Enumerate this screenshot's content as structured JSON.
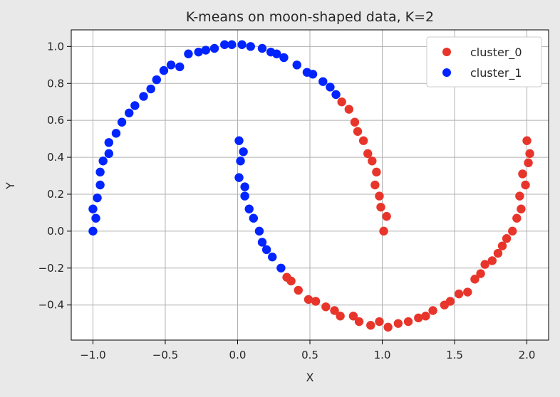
{
  "chart_data": {
    "type": "scatter",
    "title": "K-means on moon-shaped data, K=2",
    "xlabel": "X",
    "ylabel": "Y",
    "xlim": [
      -1.15,
      2.15
    ],
    "ylim": [
      -0.59,
      1.09
    ],
    "xticks": [
      -1.0,
      -0.5,
      0.0,
      0.5,
      1.0,
      1.5,
      2.0
    ],
    "xtick_labels": [
      "−1.0",
      "−0.5",
      "0.0",
      "0.5",
      "1.0",
      "1.5",
      "2.0"
    ],
    "yticks": [
      -0.4,
      -0.2,
      0.0,
      0.2,
      0.4,
      0.6,
      0.8,
      1.0
    ],
    "ytick_labels": [
      "−0.4",
      "−0.2",
      "0.0",
      "0.2",
      "0.4",
      "0.6",
      "0.8",
      "1.0"
    ],
    "grid": true,
    "legend_position": "top-right",
    "series": [
      {
        "name": "cluster_0",
        "color": "#e8352b",
        "points": [
          [
            0.72,
            0.7
          ],
          [
            0.77,
            0.66
          ],
          [
            0.81,
            0.59
          ],
          [
            0.83,
            0.54
          ],
          [
            0.87,
            0.49
          ],
          [
            0.9,
            0.42
          ],
          [
            0.93,
            0.38
          ],
          [
            0.96,
            0.32
          ],
          [
            0.95,
            0.25
          ],
          [
            0.98,
            0.19
          ],
          [
            0.99,
            0.13
          ],
          [
            1.03,
            0.08
          ],
          [
            1.01,
            0.0
          ],
          [
            0.34,
            -0.25
          ],
          [
            0.37,
            -0.27
          ],
          [
            0.42,
            -0.32
          ],
          [
            0.49,
            -0.37
          ],
          [
            0.54,
            -0.38
          ],
          [
            0.61,
            -0.41
          ],
          [
            0.67,
            -0.43
          ],
          [
            0.71,
            -0.46
          ],
          [
            0.8,
            -0.46
          ],
          [
            0.84,
            -0.49
          ],
          [
            0.92,
            -0.51
          ],
          [
            0.98,
            -0.49
          ],
          [
            1.04,
            -0.52
          ],
          [
            1.11,
            -0.5
          ],
          [
            1.18,
            -0.49
          ],
          [
            1.25,
            -0.47
          ],
          [
            1.3,
            -0.46
          ],
          [
            1.35,
            -0.43
          ],
          [
            1.43,
            -0.4
          ],
          [
            1.47,
            -0.38
          ],
          [
            1.53,
            -0.34
          ],
          [
            1.59,
            -0.33
          ],
          [
            1.64,
            -0.26
          ],
          [
            1.68,
            -0.23
          ],
          [
            1.71,
            -0.18
          ],
          [
            1.76,
            -0.16
          ],
          [
            1.8,
            -0.12
          ],
          [
            1.83,
            -0.08
          ],
          [
            1.86,
            -0.04
          ],
          [
            1.9,
            0.0
          ],
          [
            1.93,
            0.07
          ],
          [
            1.96,
            0.12
          ],
          [
            1.95,
            0.19
          ],
          [
            1.99,
            0.25
          ],
          [
            1.97,
            0.31
          ],
          [
            2.01,
            0.37
          ],
          [
            2.02,
            0.42
          ],
          [
            2.0,
            0.49
          ]
        ]
      },
      {
        "name": "cluster_1",
        "color": "#0024ff",
        "points": [
          [
            -1.0,
            0.0
          ],
          [
            -0.98,
            0.07
          ],
          [
            -1.0,
            0.12
          ],
          [
            -0.97,
            0.18
          ],
          [
            -0.95,
            0.25
          ],
          [
            -0.95,
            0.32
          ],
          [
            -0.93,
            0.38
          ],
          [
            -0.89,
            0.42
          ],
          [
            -0.89,
            0.48
          ],
          [
            -0.84,
            0.53
          ],
          [
            -0.8,
            0.59
          ],
          [
            -0.75,
            0.64
          ],
          [
            -0.71,
            0.68
          ],
          [
            -0.65,
            0.73
          ],
          [
            -0.6,
            0.77
          ],
          [
            -0.56,
            0.82
          ],
          [
            -0.51,
            0.87
          ],
          [
            -0.46,
            0.9
          ],
          [
            -0.4,
            0.89
          ],
          [
            -0.34,
            0.96
          ],
          [
            -0.27,
            0.97
          ],
          [
            -0.22,
            0.98
          ],
          [
            -0.16,
            0.99
          ],
          [
            -0.09,
            1.01
          ],
          [
            -0.04,
            1.01
          ],
          [
            0.03,
            1.01
          ],
          [
            0.09,
            1.0
          ],
          [
            0.17,
            0.99
          ],
          [
            0.23,
            0.97
          ],
          [
            0.27,
            0.96
          ],
          [
            0.32,
            0.94
          ],
          [
            0.41,
            0.9
          ],
          [
            0.48,
            0.86
          ],
          [
            0.52,
            0.85
          ],
          [
            0.59,
            0.81
          ],
          [
            0.64,
            0.78
          ],
          [
            0.68,
            0.74
          ],
          [
            0.01,
            0.49
          ],
          [
            0.04,
            0.43
          ],
          [
            0.02,
            0.38
          ],
          [
            0.01,
            0.29
          ],
          [
            0.05,
            0.24
          ],
          [
            0.05,
            0.19
          ],
          [
            0.08,
            0.12
          ],
          [
            0.11,
            0.07
          ],
          [
            0.15,
            0.0
          ],
          [
            0.17,
            -0.06
          ],
          [
            0.2,
            -0.1
          ],
          [
            0.24,
            -0.14
          ],
          [
            0.3,
            -0.2
          ]
        ]
      }
    ]
  }
}
